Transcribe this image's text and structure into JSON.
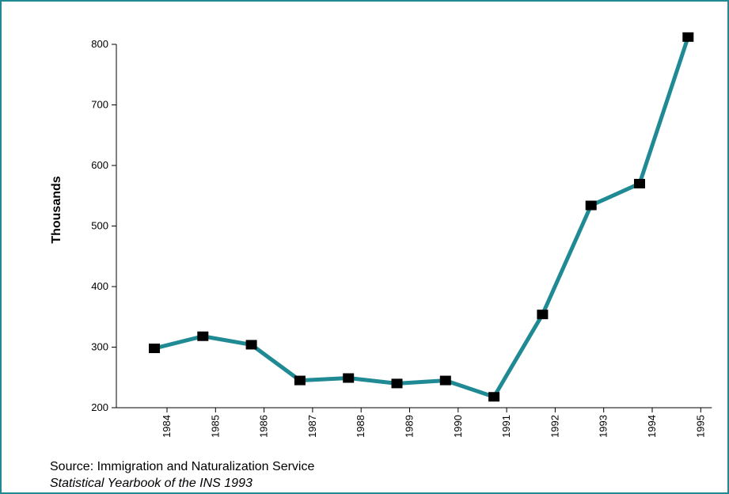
{
  "chart_data": {
    "type": "line",
    "title": "",
    "xlabel": "",
    "ylabel": "Thousands",
    "ylim": [
      200,
      800
    ],
    "yticks": [
      200,
      300,
      400,
      500,
      600,
      700,
      800
    ],
    "categories": [
      "1984",
      "1985",
      "1986",
      "1987",
      "1988",
      "1989",
      "1990",
      "1991",
      "1992",
      "1993",
      "1994",
      "1995"
    ],
    "series": [
      {
        "values": [
          298,
          318,
          304,
          245,
          249,
          240,
          245,
          218,
          354,
          534,
          570,
          812
        ]
      }
    ],
    "grid": false,
    "legend": "none",
    "colors": {
      "line": "#1f8a93",
      "marker": "#000000",
      "axis": "#000000",
      "frame": "#1f8a93"
    }
  },
  "source": {
    "line1": "Source: Immigration and Naturalization Service",
    "line2": "Statistical Yearbook of the INS 1993"
  }
}
